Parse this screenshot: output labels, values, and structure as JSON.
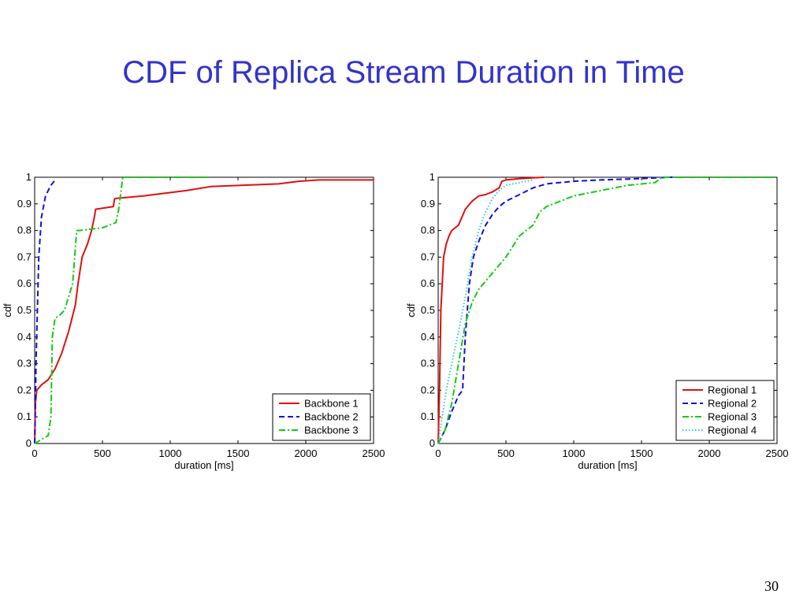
{
  "slide": {
    "title": "CDF of Replica Stream Duration in Time",
    "page_number": "30"
  },
  "colors": {
    "title": "#3333cc",
    "red": "#e01010",
    "blue": "#1111dd",
    "green": "#11cc11",
    "cyan": "#33cccc"
  },
  "chart_data": [
    {
      "type": "line",
      "xlabel": "duration [ms]",
      "ylabel": "cdf",
      "xlim": [
        0,
        2500
      ],
      "ylim": [
        0,
        1
      ],
      "xticks": [
        "0",
        "500",
        "1000",
        "1500",
        "2000",
        "2500"
      ],
      "yticks": [
        "0",
        "0.1",
        "0.2",
        "0.3",
        "0.4",
        "0.5",
        "0.6",
        "0.7",
        "0.8",
        "0.9",
        "1"
      ],
      "legend_position": "bottom-right",
      "series": [
        {
          "name": "Backbone 1",
          "color": "#e01010",
          "dash": "solid",
          "x": [
            0,
            5,
            15,
            50,
            100,
            150,
            200,
            250,
            300,
            320,
            350,
            390,
            420,
            440,
            450,
            580,
            590,
            800,
            1120,
            1300,
            1800,
            1950,
            2100,
            2500
          ],
          "y": [
            0,
            0.15,
            0.2,
            0.22,
            0.24,
            0.28,
            0.34,
            0.42,
            0.52,
            0.6,
            0.7,
            0.75,
            0.8,
            0.85,
            0.88,
            0.89,
            0.92,
            0.93,
            0.95,
            0.965,
            0.975,
            0.985,
            0.99,
            0.99
          ]
        },
        {
          "name": "Backbone 2",
          "color": "#1111dd",
          "dash": "dashed",
          "x": [
            0,
            5,
            10,
            20,
            30,
            50,
            80,
            120,
            160
          ],
          "y": [
            0,
            0.15,
            0.3,
            0.5,
            0.7,
            0.85,
            0.93,
            0.97,
            0.995
          ]
        },
        {
          "name": "Backbone 3",
          "color": "#11cc11",
          "dash": "dashdot",
          "x": [
            0,
            100,
            120,
            130,
            150,
            180,
            220,
            280,
            310,
            330,
            500,
            600,
            620,
            650,
            1280
          ],
          "y": [
            0,
            0.03,
            0.1,
            0.4,
            0.47,
            0.48,
            0.5,
            0.6,
            0.8,
            0.8,
            0.81,
            0.83,
            0.88,
            1.0,
            1.0
          ]
        }
      ]
    },
    {
      "type": "line",
      "xlabel": "duration [ms]",
      "ylabel": "cdf",
      "xlim": [
        0,
        2500
      ],
      "ylim": [
        0,
        1
      ],
      "xticks": [
        "0",
        "500",
        "1000",
        "1500",
        "2000",
        "2500"
      ],
      "yticks": [
        "0",
        "0.1",
        "0.2",
        "0.3",
        "0.4",
        "0.5",
        "0.6",
        "0.7",
        "0.8",
        "0.9",
        "1"
      ],
      "legend_position": "bottom-right",
      "series": [
        {
          "name": "Regional 1",
          "color": "#e01010",
          "dash": "solid",
          "x": [
            0,
            10,
            20,
            40,
            60,
            80,
            100,
            150,
            200,
            250,
            300,
            350,
            400,
            450,
            470,
            500,
            600,
            780
          ],
          "y": [
            0,
            0.2,
            0.5,
            0.7,
            0.75,
            0.78,
            0.8,
            0.82,
            0.88,
            0.91,
            0.93,
            0.935,
            0.945,
            0.96,
            0.985,
            0.99,
            0.995,
            1.0
          ]
        },
        {
          "name": "Regional 2",
          "color": "#1111dd",
          "dash": "dashed",
          "x": [
            0,
            50,
            100,
            150,
            180,
            200,
            230,
            260,
            300,
            350,
            400,
            450,
            500,
            600,
            700,
            800,
            1000,
            1200,
            1500,
            1700,
            1780
          ],
          "y": [
            0,
            0.05,
            0.12,
            0.18,
            0.2,
            0.4,
            0.6,
            0.7,
            0.76,
            0.82,
            0.86,
            0.89,
            0.91,
            0.935,
            0.96,
            0.975,
            0.985,
            0.99,
            0.995,
            1.0,
            1.0
          ]
        },
        {
          "name": "Regional 3",
          "color": "#11cc11",
          "dash": "dashdot",
          "x": [
            0,
            50,
            100,
            150,
            200,
            250,
            300,
            400,
            500,
            600,
            700,
            750,
            800,
            1000,
            1200,
            1400,
            1600,
            1650,
            2500
          ],
          "y": [
            0,
            0.05,
            0.15,
            0.3,
            0.45,
            0.53,
            0.58,
            0.64,
            0.7,
            0.78,
            0.82,
            0.87,
            0.89,
            0.93,
            0.95,
            0.97,
            0.98,
            1.0,
            1.0
          ]
        },
        {
          "name": "Regional 4",
          "color": "#33cccc",
          "dash": "dotted",
          "x": [
            0,
            30,
            60,
            100,
            150,
            200,
            250,
            300,
            350,
            400,
            450,
            500,
            700
          ],
          "y": [
            0,
            0.1,
            0.2,
            0.3,
            0.42,
            0.55,
            0.7,
            0.8,
            0.87,
            0.92,
            0.95,
            0.97,
            0.99
          ]
        }
      ]
    }
  ]
}
